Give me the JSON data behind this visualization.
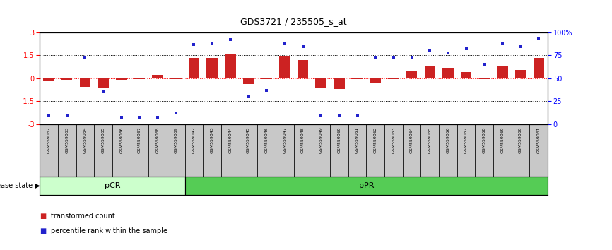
{
  "title": "GDS3721 / 235505_s_at",
  "samples": [
    "GSM559062",
    "GSM559063",
    "GSM559064",
    "GSM559065",
    "GSM559066",
    "GSM559067",
    "GSM559068",
    "GSM559069",
    "GSM559042",
    "GSM559043",
    "GSM559044",
    "GSM559045",
    "GSM559046",
    "GSM559047",
    "GSM559048",
    "GSM559049",
    "GSM559050",
    "GSM559051",
    "GSM559052",
    "GSM559053",
    "GSM559054",
    "GSM559055",
    "GSM559056",
    "GSM559057",
    "GSM559058",
    "GSM559059",
    "GSM559060",
    "GSM559061"
  ],
  "bar_values": [
    -0.12,
    -0.08,
    -0.55,
    -0.65,
    -0.08,
    -0.05,
    0.22,
    -0.05,
    1.35,
    1.35,
    1.55,
    -0.35,
    -0.05,
    1.45,
    1.2,
    -0.65,
    -0.68,
    -0.05,
    -0.32,
    -0.05,
    0.48,
    0.82,
    0.68,
    0.42,
    -0.05,
    0.78,
    0.55,
    1.35
  ],
  "percentile_values": [
    10,
    10,
    73,
    35,
    8,
    8,
    8,
    12,
    87,
    88,
    92,
    30,
    37,
    88,
    85,
    10,
    9,
    10,
    72,
    73,
    73,
    80,
    78,
    82,
    65,
    88,
    85,
    93
  ],
  "groups": [
    {
      "label": "pCR",
      "start": 0,
      "end": 8,
      "color": "#ccffcc"
    },
    {
      "label": "pPR",
      "start": 8,
      "end": 28,
      "color": "#55cc55"
    }
  ],
  "pcr_count": 8,
  "ylim": [
    -3,
    3
  ],
  "yticks_left": [
    -3,
    -1.5,
    0,
    1.5,
    3
  ],
  "yticks_right": [
    0,
    25,
    50,
    75,
    100
  ],
  "bar_color": "#cc2222",
  "dot_color": "#2222cc",
  "background_color": "#ffffff",
  "plot_bg": "#ffffff",
  "sample_row_color": "#cccccc",
  "legend_items": [
    {
      "label": "transformed count",
      "color": "#cc2222"
    },
    {
      "label": "percentile rank within the sample",
      "color": "#2222cc"
    }
  ]
}
